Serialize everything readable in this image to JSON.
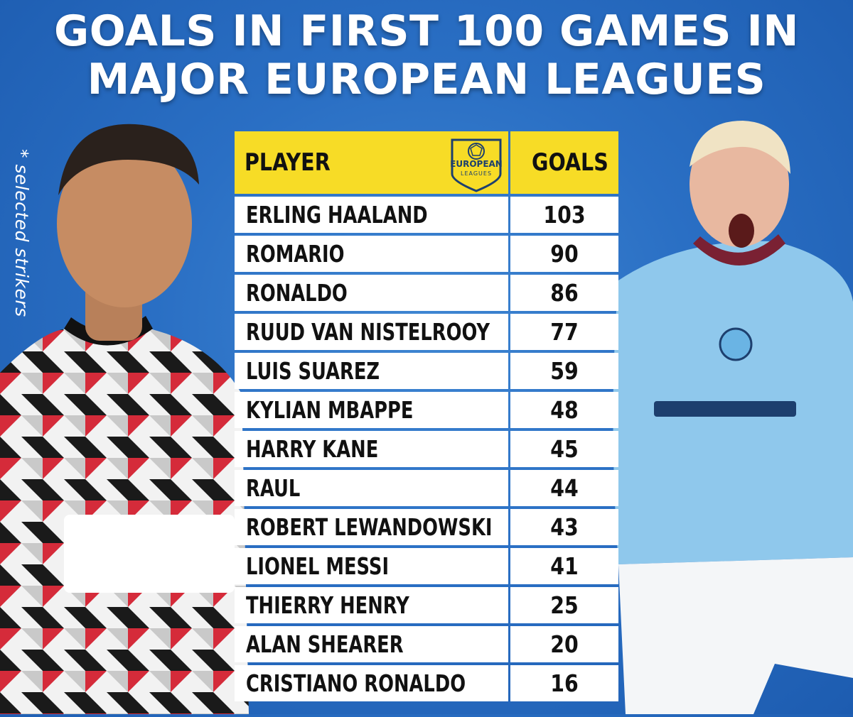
{
  "side_note": "* selected strikers",
  "logo": {
    "line1": "EUROPEAN",
    "line2": "LEAGUES"
  },
  "chart_data": {
    "type": "table",
    "title_lines": [
      "GOALS IN FIRST 100 GAMES IN",
      "MAJOR EUROPEAN LEAGUES"
    ],
    "columns": [
      "PLAYER",
      "GOALS"
    ],
    "rows": [
      [
        "ERLING HAALAND",
        "103"
      ],
      [
        "ROMARIO",
        "90"
      ],
      [
        "RONALDO",
        "86"
      ],
      [
        "RUUD VAN NISTELROOY",
        "77"
      ],
      [
        "LUIS SUAREZ",
        "59"
      ],
      [
        "KYLIAN MBAPPE",
        "48"
      ],
      [
        "HARRY KANE",
        "45"
      ],
      [
        "RAUL",
        "44"
      ],
      [
        "ROBERT LEWANDOWSKI",
        "43"
      ],
      [
        "LIONEL MESSI",
        "41"
      ],
      [
        "THIERRY HENRY",
        "25"
      ],
      [
        "ALAN SHEARER",
        "20"
      ],
      [
        "CRISTIANO RONALDO",
        "16"
      ]
    ]
  },
  "colors": {
    "background": "#2a6fc4",
    "header": "#f7dc26",
    "cell": "#ffffff",
    "title_text": "#ffffff"
  }
}
